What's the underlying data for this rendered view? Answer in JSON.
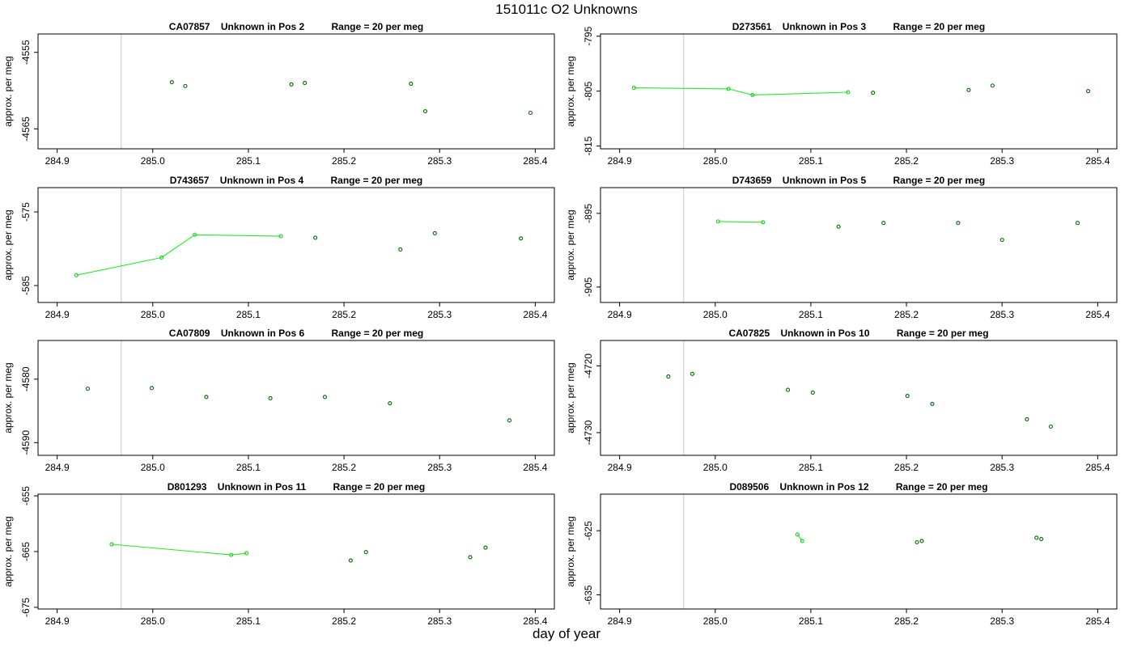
{
  "figure": {
    "title": "151011c  O2 Unknowns",
    "xlabel": "day of year"
  },
  "chart_data": [
    {
      "type": "scatter",
      "title": "CA07857    Unknown in Pos 2          Range = 20 per meg",
      "ylabel": "approx. per meg",
      "xlim": [
        284.88,
        285.42
      ],
      "ylim": [
        -4567.6,
        -4552.6
      ],
      "xticks": [
        "284.9",
        "285.0",
        "285.1",
        "285.2",
        "285.3",
        "285.4"
      ],
      "yticks": [
        "-4555",
        "-4565"
      ],
      "vlines": [
        284.967
      ],
      "grid": false,
      "points": [
        [
          285.02,
          -4558.9
        ],
        [
          285.034,
          -4559.4
        ],
        [
          285.145,
          -4559.2
        ],
        [
          285.159,
          -4559.0
        ],
        [
          285.27,
          -4559.1
        ],
        [
          285.285,
          -4562.7
        ],
        [
          285.395,
          -4562.9
        ]
      ],
      "lines": []
    },
    {
      "type": "scatter",
      "title": "D273561    Unknown in Pos 3          Range = 20 per meg",
      "ylabel": "approx. per meg",
      "xlim": [
        284.88,
        285.42
      ],
      "ylim": [
        -815.5,
        -794.6
      ],
      "xticks": [
        "284.9",
        "285.0",
        "285.1",
        "285.2",
        "285.3",
        "285.4"
      ],
      "yticks": [
        "-795",
        "-805",
        "-815"
      ],
      "vlines": [
        284.967
      ],
      "grid": false,
      "points": [
        [
          284.915,
          -804.4
        ],
        [
          285.014,
          -804.6
        ],
        [
          285.039,
          -805.7
        ],
        [
          285.139,
          -805.2
        ],
        [
          285.165,
          -805.3
        ],
        [
          285.265,
          -804.8
        ],
        [
          285.29,
          -804.0
        ],
        [
          285.39,
          -805.0
        ]
      ],
      "lines": [
        [
          [
            284.915,
            -804.4
          ],
          [
            285.014,
            -804.6
          ],
          [
            285.039,
            -805.7
          ],
          [
            285.139,
            -805.2
          ]
        ]
      ]
    },
    {
      "type": "scatter",
      "title": "D743657    Unknown in Pos 4          Range = 20 per meg",
      "ylabel": "approx. per meg",
      "xlim": [
        284.88,
        285.42
      ],
      "ylim": [
        -587.3,
        -571.7
      ],
      "xticks": [
        "284.9",
        "285.0",
        "285.1",
        "285.2",
        "285.3",
        "285.4"
      ],
      "yticks": [
        "-575",
        "-585"
      ],
      "vlines": [
        284.967
      ],
      "grid": false,
      "points": [
        [
          284.92,
          -583.6
        ],
        [
          285.009,
          -581.2
        ],
        [
          285.044,
          -578.1
        ],
        [
          285.134,
          -578.3
        ],
        [
          285.17,
          -578.5
        ],
        [
          285.259,
          -580.1
        ],
        [
          285.295,
          -577.9
        ],
        [
          285.385,
          -578.6
        ]
      ],
      "lines": [
        [
          [
            284.92,
            -583.6
          ],
          [
            285.009,
            -581.2
          ],
          [
            285.044,
            -578.1
          ],
          [
            285.134,
            -578.3
          ]
        ]
      ]
    },
    {
      "type": "scatter",
      "title": "D743659    Unknown in Pos 5          Range = 20 per meg",
      "ylabel": "approx. per meg",
      "xlim": [
        284.88,
        285.42
      ],
      "ylim": [
        -907.1,
        -891.5
      ],
      "xticks": [
        "284.9",
        "285.0",
        "285.1",
        "285.2",
        "285.3",
        "285.4"
      ],
      "yticks": [
        "-895",
        "-905"
      ],
      "vlines": [
        284.967
      ],
      "grid": false,
      "points": [
        [
          285.003,
          -896.1
        ],
        [
          285.05,
          -896.2
        ],
        [
          285.129,
          -896.8
        ],
        [
          285.176,
          -896.3
        ],
        [
          285.254,
          -896.3
        ],
        [
          285.3,
          -898.6
        ],
        [
          285.379,
          -896.3
        ]
      ],
      "lines": [
        [
          [
            285.003,
            -896.1
          ],
          [
            285.05,
            -896.2
          ]
        ]
      ]
    },
    {
      "type": "scatter",
      "title": "CA07809    Unknown in Pos 6          Range = 20 per meg",
      "ylabel": "approx. per meg",
      "xlim": [
        284.88,
        285.42
      ],
      "ylim": [
        -4592.0,
        -4573.9
      ],
      "xticks": [
        "284.9",
        "285.0",
        "285.1",
        "285.2",
        "285.3",
        "285.4"
      ],
      "yticks": [
        "-4580",
        "-4590"
      ],
      "vlines": [
        284.967
      ],
      "grid": false,
      "points": [
        [
          284.932,
          -4581.5
        ],
        [
          284.999,
          -4581.4
        ],
        [
          285.056,
          -4582.8
        ],
        [
          285.123,
          -4583.0
        ],
        [
          285.18,
          -4582.8
        ],
        [
          285.248,
          -4583.8
        ],
        [
          285.373,
          -4586.5
        ]
      ],
      "lines": []
    },
    {
      "type": "scatter",
      "title": "CA07825    Unknown in Pos 10          Range = 20 per meg",
      "ylabel": "approx. per meg",
      "xlim": [
        284.88,
        285.42
      ],
      "ylim": [
        -4733.4,
        -4716.2
      ],
      "xticks": [
        "284.9",
        "285.0",
        "285.1",
        "285.2",
        "285.3",
        "285.4"
      ],
      "yticks": [
        "-4720",
        "-4730"
      ],
      "vlines": [
        284.967
      ],
      "grid": false,
      "points": [
        [
          284.951,
          -4721.6
        ],
        [
          284.976,
          -4721.2
        ],
        [
          285.076,
          -4723.6
        ],
        [
          285.102,
          -4724.0
        ],
        [
          285.201,
          -4724.5
        ],
        [
          285.227,
          -4725.7
        ],
        [
          285.326,
          -4728.0
        ],
        [
          285.351,
          -4729.1
        ]
      ],
      "lines": []
    },
    {
      "type": "scatter",
      "title": "D801293    Unknown in Pos 11          Range = 20 per meg",
      "ylabel": "approx. per meg",
      "xlim": [
        284.88,
        285.42
      ],
      "ylim": [
        -675.3,
        -654.7
      ],
      "xticks": [
        "284.9",
        "285.0",
        "285.1",
        "285.2",
        "285.3",
        "285.4"
      ],
      "yticks": [
        "-655",
        "-665",
        "-675"
      ],
      "vlines": [
        284.967
      ],
      "grid": false,
      "points": [
        [
          284.957,
          -663.7
        ],
        [
          285.082,
          -665.6
        ],
        [
          285.098,
          -665.3
        ],
        [
          285.207,
          -666.6
        ],
        [
          285.223,
          -665.1
        ],
        [
          285.332,
          -666.0
        ],
        [
          285.348,
          -664.3
        ]
      ],
      "lines": [
        [
          [
            284.957,
            -663.7
          ],
          [
            285.082,
            -665.6
          ],
          [
            285.098,
            -665.3
          ]
        ]
      ]
    },
    {
      "type": "scatter",
      "title": "D089506    Unknown in Pos 12          Range = 20 per meg",
      "ylabel": "approx. per meg",
      "xlim": [
        284.88,
        285.42
      ],
      "ylim": [
        -637.2,
        -619.3
      ],
      "xticks": [
        "284.9",
        "285.0",
        "285.1",
        "285.2",
        "285.3",
        "285.4"
      ],
      "yticks": [
        "-625",
        "-635"
      ],
      "vlines": [
        284.967
      ],
      "grid": false,
      "points": [
        [
          285.086,
          -625.6
        ],
        [
          285.091,
          -626.6
        ],
        [
          285.211,
          -626.8
        ],
        [
          285.216,
          -626.6
        ],
        [
          285.336,
          -626.1
        ],
        [
          285.341,
          -626.3
        ]
      ],
      "lines": [
        [
          [
            285.086,
            -625.6
          ],
          [
            285.091,
            -626.6
          ]
        ]
      ]
    }
  ]
}
